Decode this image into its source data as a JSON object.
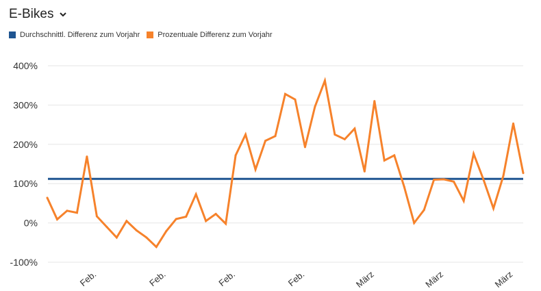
{
  "header": {
    "title": "E-Bikes"
  },
  "chart_data": {
    "type": "line",
    "title": "E-Bikes",
    "xlabel": "",
    "ylabel": "",
    "ylim": [
      -100,
      400
    ],
    "yticks": [
      -100,
      0,
      100,
      200,
      300,
      400
    ],
    "ytick_labels": [
      "-100%",
      "0%",
      "100%",
      "200%",
      "300%",
      "400%"
    ],
    "grid": true,
    "legend_position": "top-left",
    "x_tick_labels": [
      {
        "index": 5,
        "label": "Feb."
      },
      {
        "index": 12,
        "label": "Feb."
      },
      {
        "index": 19,
        "label": "Feb."
      },
      {
        "index": 26,
        "label": "Feb."
      },
      {
        "index": 33,
        "label": "März"
      },
      {
        "index": 40,
        "label": "März"
      },
      {
        "index": 47,
        "label": "März"
      }
    ],
    "series": [
      {
        "name": "Durchschnittl. Differenz zum Vorjahr",
        "color": "#1f5591",
        "constant": 112
      },
      {
        "name": "Prozentuale Differenz zum Vorjahr",
        "color": "#f6822b",
        "values": [
          64,
          9,
          31,
          26,
          169,
          17,
          -10,
          -37,
          5,
          -19,
          -37,
          -61,
          -21,
          10,
          16,
          73,
          5,
          23,
          -2,
          172,
          225,
          136,
          209,
          221,
          328,
          314,
          193,
          296,
          362,
          225,
          213,
          240,
          131,
          310,
          159,
          172,
          92,
          0,
          33,
          110,
          111,
          105,
          56,
          176,
          110,
          37,
          120,
          253,
          127
        ]
      }
    ]
  }
}
